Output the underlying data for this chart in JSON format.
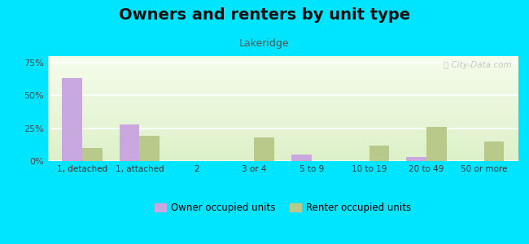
{
  "title": "Owners and renters by unit type",
  "subtitle": "Lakeridge",
  "categories": [
    "1, detached",
    "1, attached",
    "2",
    "3 or 4",
    "5 to 9",
    "10 to 19",
    "20 to 49",
    "50 or more"
  ],
  "owner_values": [
    63,
    28,
    0,
    0,
    5,
    0,
    3,
    0
  ],
  "renter_values": [
    10,
    19,
    0,
    18,
    0,
    12,
    26,
    15
  ],
  "owner_color": "#c9a8e0",
  "renter_color": "#b8c98a",
  "background_color": "#00e5ff",
  "ylim": [
    0,
    80
  ],
  "yticks": [
    0,
    25,
    50,
    75
  ],
  "ytick_labels": [
    "0%",
    "25%",
    "50%",
    "75%"
  ],
  "title_fontsize": 14,
  "subtitle_fontsize": 9,
  "legend_label_owner": "Owner occupied units",
  "legend_label_renter": "Renter occupied units",
  "bar_width": 0.35
}
